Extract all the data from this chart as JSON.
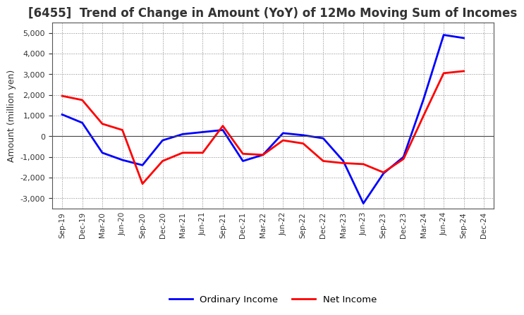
{
  "title": "[6455]  Trend of Change in Amount (YoY) of 12Mo Moving Sum of Incomes",
  "ylabel": "Amount (million yen)",
  "x_labels": [
    "Sep-19",
    "Dec-19",
    "Mar-20",
    "Jun-20",
    "Sep-20",
    "Dec-20",
    "Mar-21",
    "Jun-21",
    "Sep-21",
    "Dec-21",
    "Mar-22",
    "Jun-22",
    "Sep-22",
    "Dec-22",
    "Mar-23",
    "Jun-23",
    "Sep-23",
    "Dec-23",
    "Mar-24",
    "Jun-24",
    "Sep-24",
    "Dec-24"
  ],
  "ordinary_income": [
    1050,
    650,
    -800,
    -1150,
    -1400,
    -200,
    100,
    200,
    300,
    -1200,
    -900,
    150,
    50,
    -100,
    -1200,
    -3250,
    -1800,
    -1000,
    1800,
    4900,
    4750,
    null
  ],
  "net_income": [
    1950,
    1750,
    600,
    300,
    -2300,
    -1200,
    -800,
    -800,
    500,
    -850,
    -900,
    -200,
    -350,
    -1200,
    -1300,
    -1350,
    -1750,
    -1100,
    1000,
    3050,
    3150,
    null
  ],
  "ordinary_income_color": "#0000ff",
  "net_income_color": "#ff0000",
  "background_color": "#ffffff",
  "grid_color": "#888888",
  "ylim": [
    -3500,
    5500
  ],
  "yticks": [
    -3000,
    -2000,
    -1000,
    0,
    1000,
    2000,
    3000,
    4000,
    5000
  ],
  "legend_ordinary": "Ordinary Income",
  "legend_net": "Net Income",
  "line_width": 2.0,
  "title_fontsize": 12,
  "title_color": "#333333"
}
